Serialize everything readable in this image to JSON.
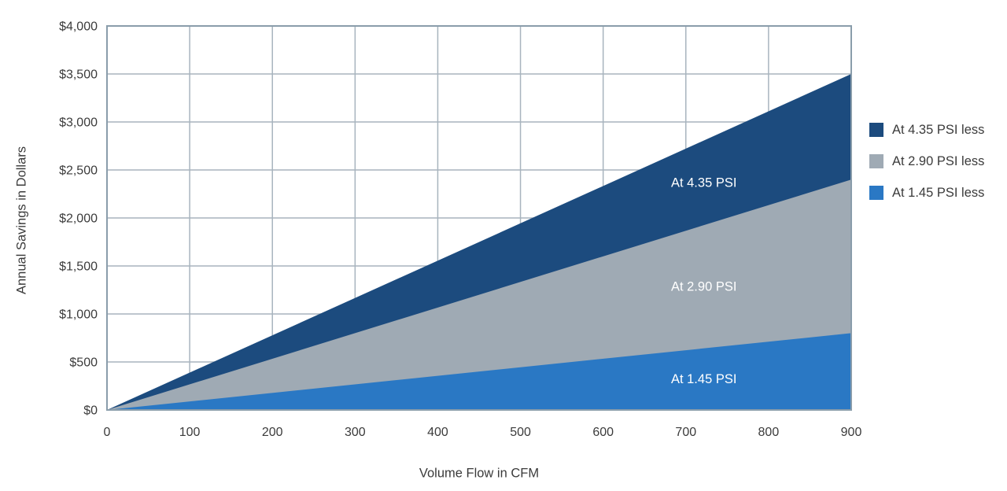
{
  "chart_data": {
    "type": "area",
    "title": "",
    "xlabel": "Volume Flow in CFM",
    "ylabel": "Annual Savings in Dollars",
    "x_range": [
      0,
      900
    ],
    "y_range": [
      0,
      4000
    ],
    "x_ticks": [
      0,
      100,
      200,
      300,
      400,
      500,
      600,
      700,
      800,
      900
    ],
    "x_tick_labels": [
      "0",
      "100",
      "200",
      "300",
      "400",
      "500",
      "600",
      "700",
      "800",
      "900"
    ],
    "y_ticks": [
      0,
      500,
      1000,
      1500,
      2000,
      2500,
      3000,
      3500,
      4000
    ],
    "y_tick_labels": [
      "$0",
      "$500",
      "$1,000",
      "$1,500",
      "$2,000",
      "$2,500",
      "$3,000",
      "$3,500",
      "$4,000"
    ],
    "grid": true,
    "legend_position": "right",
    "series": [
      {
        "name": "At 4.35 PSI less",
        "area_label": "At 4.35 PSI",
        "color": "#1c4b7e",
        "x": [
          0,
          900
        ],
        "values": [
          0,
          3500
        ]
      },
      {
        "name": "At 2.90 PSI less",
        "area_label": "At 2.90 PSI",
        "color": "#9faab4",
        "x": [
          0,
          900
        ],
        "values": [
          0,
          2400
        ]
      },
      {
        "name": "At 1.45 PSI less",
        "area_label": "At 1.45 PSI",
        "color": "#2a78c4",
        "x": [
          0,
          900
        ],
        "values": [
          0,
          800
        ]
      }
    ],
    "colors": {
      "grid": "#a8b4be",
      "border": "#8a9dab",
      "tick_text": "#3b3b3b",
      "area_label_text": "#ffffff",
      "background": "#ffffff"
    }
  }
}
